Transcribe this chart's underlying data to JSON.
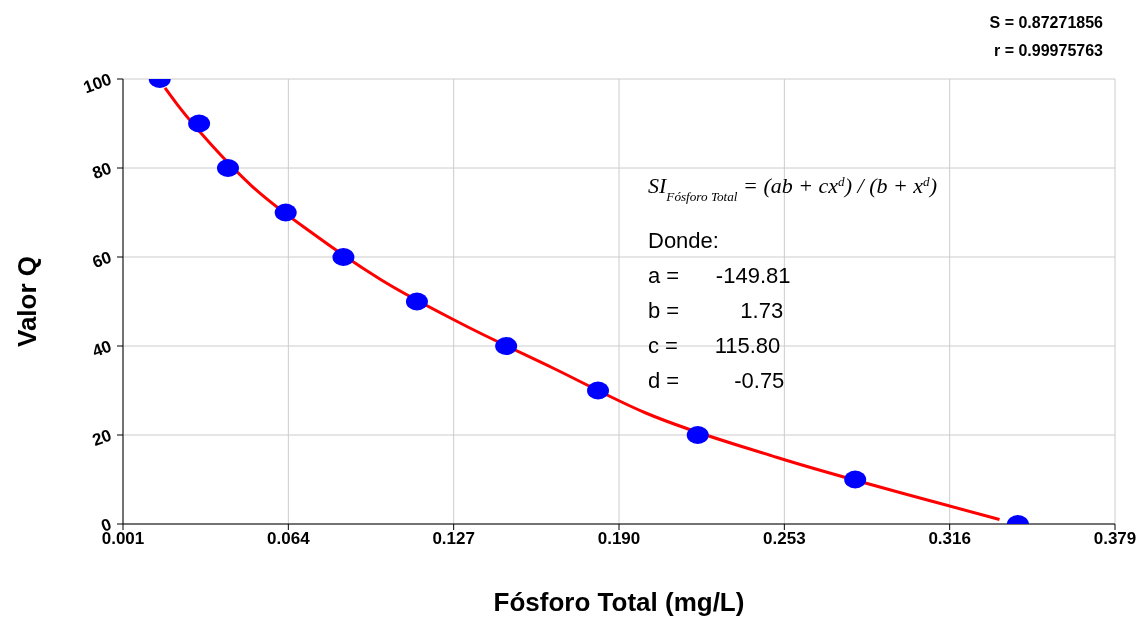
{
  "chart_data": {
    "type": "scatter",
    "xlabel": "Fósforo Total (mg/L)",
    "ylabel": "Valor Q",
    "xlim": [
      0.001,
      0.379
    ],
    "xticks": [
      0.001,
      0.064,
      0.127,
      {
        "value": 0.19,
        "label": "0.190"
      },
      0.253,
      0.316,
      0.379
    ],
    "ylim": [
      0,
      100
    ],
    "yticks": [
      0,
      20,
      40,
      60,
      80,
      100
    ],
    "grid": true,
    "marker": "circle",
    "series": [
      {
        "color": "#0000ff",
        "x": [
          0.015,
          0.03,
          0.041,
          0.063,
          0.085,
          0.113,
          0.147,
          0.182,
          0.22,
          0.28,
          0.342
        ],
        "values": [
          100,
          90,
          80,
          70,
          60,
          50,
          40,
          30,
          20,
          10,
          0
        ]
      },
      {
        "type": "line",
        "color": "#ff0000",
        "line_style": "solid",
        "marker": "none",
        "x": [
          0.017,
          0.022,
          0.035,
          0.05,
          0.074,
          0.099,
          0.13,
          0.165,
          0.2,
          0.25,
          0.31,
          0.335
        ],
        "values": [
          98,
          94,
          85,
          76,
          65,
          55,
          45,
          35,
          25,
          15,
          5,
          1
        ]
      }
    ],
    "annotations": [
      "S = 0.87271856",
      "r = 0.99975763",
      "SI$_{Fósforo Total}$ = (ab + cx$^{d}$) / (b + x$^{d}$)",
      "Donde:",
      "a =      -149.81",
      "b =          1.73",
      "c =      115.80",
      "d =         -0.75"
    ]
  }
}
